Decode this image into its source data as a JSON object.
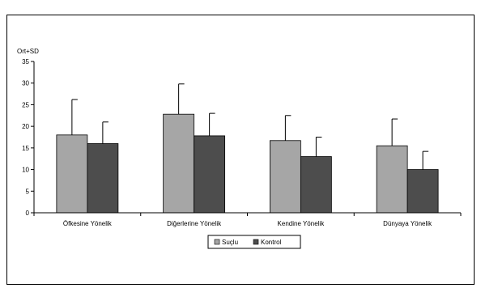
{
  "chart_data": {
    "type": "bar",
    "ylabel": "Ort+SD",
    "ylim": [
      0,
      35
    ],
    "yticks": [
      0,
      5,
      10,
      15,
      20,
      25,
      30,
      35
    ],
    "grid": false,
    "legend_position": "bottom",
    "categories": [
      "Öfkesine Yönelik",
      "Diğerlerine Yönelik",
      "Kendine Yönelik",
      "Dünyaya Yönelik"
    ],
    "series": [
      {
        "name": "Suçlu",
        "color": "#a6a6a6",
        "values": [
          18,
          22.8,
          16.7,
          15.5
        ],
        "sd": [
          8.2,
          7.0,
          5.8,
          6.2
        ]
      },
      {
        "name": "Kontrol",
        "color": "#4d4d4d",
        "values": [
          16,
          17.8,
          13,
          10
        ],
        "sd": [
          5.0,
          5.2,
          4.5,
          4.2
        ]
      }
    ]
  }
}
